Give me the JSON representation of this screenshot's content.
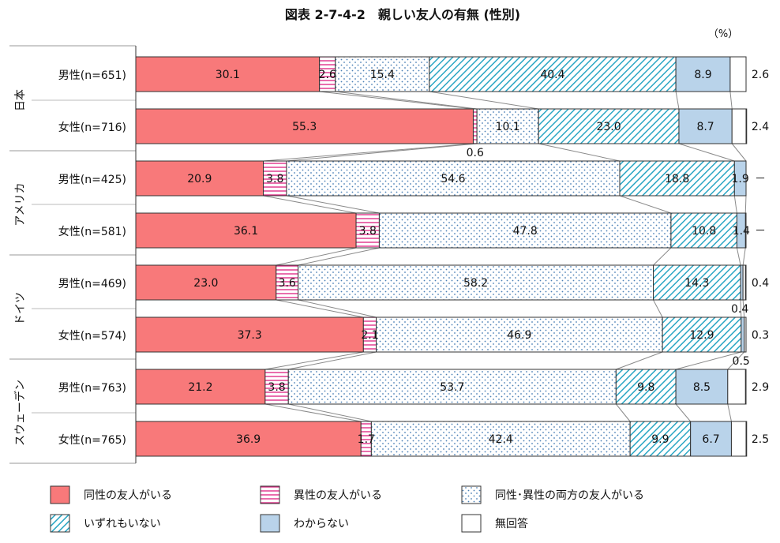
{
  "chart_data": {
    "type": "bar",
    "orientation": "horizontal-stacked-100",
    "title": "図表 2-7-4-2　親しい友人の有無 (性別)",
    "unit_label": "（%）",
    "xlim": [
      0,
      100
    ],
    "countries": [
      "日本",
      "アメリカ",
      "ドイツ",
      "スウェーデン"
    ],
    "categories": [
      "男性(n=651)",
      "女性(n=716)",
      "男性(n=425)",
      "女性(n=581)",
      "男性(n=469)",
      "女性(n=574)",
      "男性(n=763)",
      "女性(n=765)"
    ],
    "series": [
      {
        "name": "同性の友人がいる",
        "color": "#f8797a",
        "pattern": "solid",
        "values": [
          30.1,
          55.3,
          20.9,
          36.1,
          23.0,
          37.3,
          21.2,
          36.9
        ],
        "labels": [
          "30.1",
          "55.3",
          "20.9",
          "36.1",
          "23.0",
          "37.3",
          "21.2",
          "36.9"
        ]
      },
      {
        "name": "異性の友人がいる",
        "color": "#e0308a",
        "pattern": "hlines",
        "values": [
          2.6,
          0.6,
          3.8,
          3.8,
          3.6,
          2.1,
          3.8,
          1.7
        ],
        "labels": [
          "2.6",
          "0.6",
          "3.8",
          "3.8",
          "3.6",
          "2.1",
          "3.8",
          "1.7"
        ]
      },
      {
        "name": "同性･異性の両方の友人がいる",
        "color": "#4a7fb5",
        "pattern": "dots",
        "values": [
          15.4,
          10.1,
          54.6,
          47.8,
          58.2,
          46.9,
          53.7,
          42.4
        ],
        "labels": [
          "15.4",
          "10.1",
          "54.6",
          "47.8",
          "58.2",
          "46.9",
          "53.7",
          "42.4"
        ]
      },
      {
        "name": "いずれもいない",
        "color": "#2aa6c4",
        "pattern": "diagonal",
        "values": [
          40.4,
          23.0,
          18.8,
          10.8,
          14.3,
          12.9,
          9.8,
          9.9
        ],
        "labels": [
          "40.4",
          "23.0",
          "18.8",
          "10.8",
          "14.3",
          "12.9",
          "9.8",
          "9.9"
        ]
      },
      {
        "name": "わからない",
        "color": "#b9d3ea",
        "pattern": "solid",
        "values": [
          8.9,
          8.7,
          1.9,
          1.4,
          0.4,
          0.5,
          8.5,
          6.7
        ],
        "labels": [
          "8.9",
          "8.7",
          "1.9",
          "1.4",
          "0.4",
          "0.5",
          "8.5",
          "6.7"
        ]
      },
      {
        "name": "無回答",
        "color": "#ffffff",
        "pattern": "solid",
        "values": [
          2.6,
          2.4,
          0,
          0,
          0.4,
          0.3,
          2.9,
          2.5
        ],
        "labels": [
          "2.6",
          "2.4",
          "－",
          "－",
          "0.4",
          "0.3",
          "2.9",
          "2.5"
        ]
      }
    ]
  }
}
